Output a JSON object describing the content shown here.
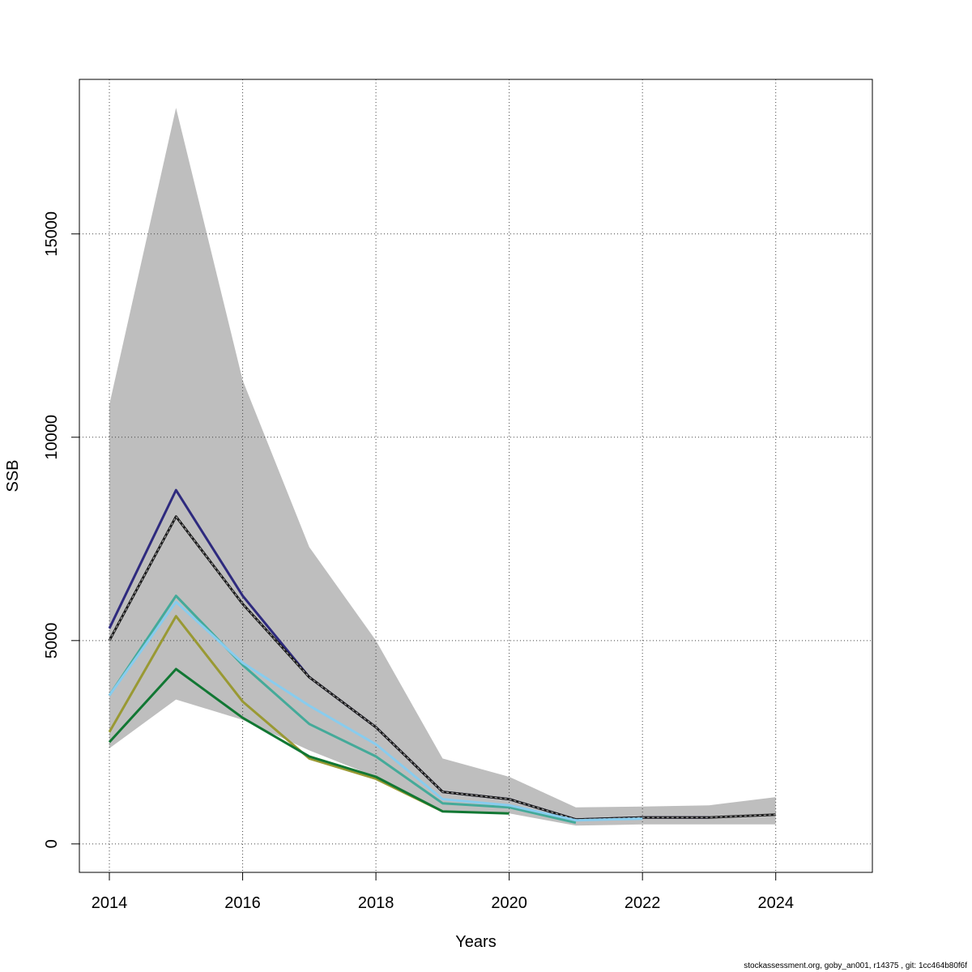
{
  "chart_data": {
    "type": "line",
    "title": "",
    "xlabel": "Years",
    "ylabel": "SSB",
    "xlim": [
      2013.55,
      2025.45
    ],
    "ylim": [
      -700,
      18800
    ],
    "x_ticks": [
      2014,
      2016,
      2018,
      2020,
      2022,
      2024
    ],
    "y_ticks": [
      0,
      5000,
      10000,
      15000
    ],
    "grid": true,
    "legend": "none",
    "band": {
      "x": [
        2014,
        2015,
        2016,
        2017,
        2018,
        2019,
        2020,
        2021,
        2022,
        2023,
        2024
      ],
      "upper": [
        10800,
        18100,
        11400,
        7300,
        5000,
        2100,
        1650,
        900,
        920,
        950,
        1150
      ],
      "lower": [
        2350,
        3550,
        3050,
        2300,
        1650,
        800,
        750,
        450,
        480,
        480,
        480
      ],
      "color": "#bebebe"
    },
    "series": [
      {
        "x": [
          2014,
          2015,
          2016,
          2017,
          2018,
          2019,
          2020,
          2021,
          2022,
          2023
        ],
        "values": [
          5300,
          8700,
          6100,
          4100,
          2870,
          1280,
          1100,
          600,
          650,
          650
        ],
        "color": "#2e2a7e",
        "dash": false
      },
      {
        "x": [
          2014,
          2015,
          2016,
          2017,
          2018,
          2019,
          2020,
          2021,
          2022,
          2023,
          2024
        ],
        "values": [
          5000,
          8050,
          5900,
          4100,
          2870,
          1280,
          1100,
          600,
          650,
          650,
          720
        ],
        "color": "#1a1a1a",
        "dash": true
      },
      {
        "x": [
          2014,
          2015,
          2016,
          2017,
          2018,
          2019,
          2020,
          2021
        ],
        "values": [
          3650,
          6100,
          4400,
          2950,
          2150,
          1000,
          900,
          520
        ],
        "color": "#44aa99",
        "dash": false
      },
      {
        "x": [
          2014,
          2015,
          2016,
          2017,
          2018,
          2019,
          2020,
          2021,
          2022
        ],
        "values": [
          3650,
          5950,
          4450,
          3400,
          2450,
          1100,
          950,
          580,
          620
        ],
        "color": "#88ccee",
        "dash": false
      },
      {
        "x": [
          2014,
          2015,
          2016,
          2017,
          2018,
          2019
        ],
        "values": [
          2750,
          5600,
          3500,
          2100,
          1600,
          800
        ],
        "color": "#999933",
        "dash": false
      },
      {
        "x": [
          2014,
          2015,
          2016,
          2017,
          2018,
          2019,
          2020
        ],
        "values": [
          2500,
          4300,
          3100,
          2150,
          1650,
          800,
          750
        ],
        "color": "#117733",
        "dash": false
      }
    ]
  },
  "footer": {
    "note": "stockassessment.org, goby_an001, r14375 , git: 1cc464b80f6f"
  }
}
